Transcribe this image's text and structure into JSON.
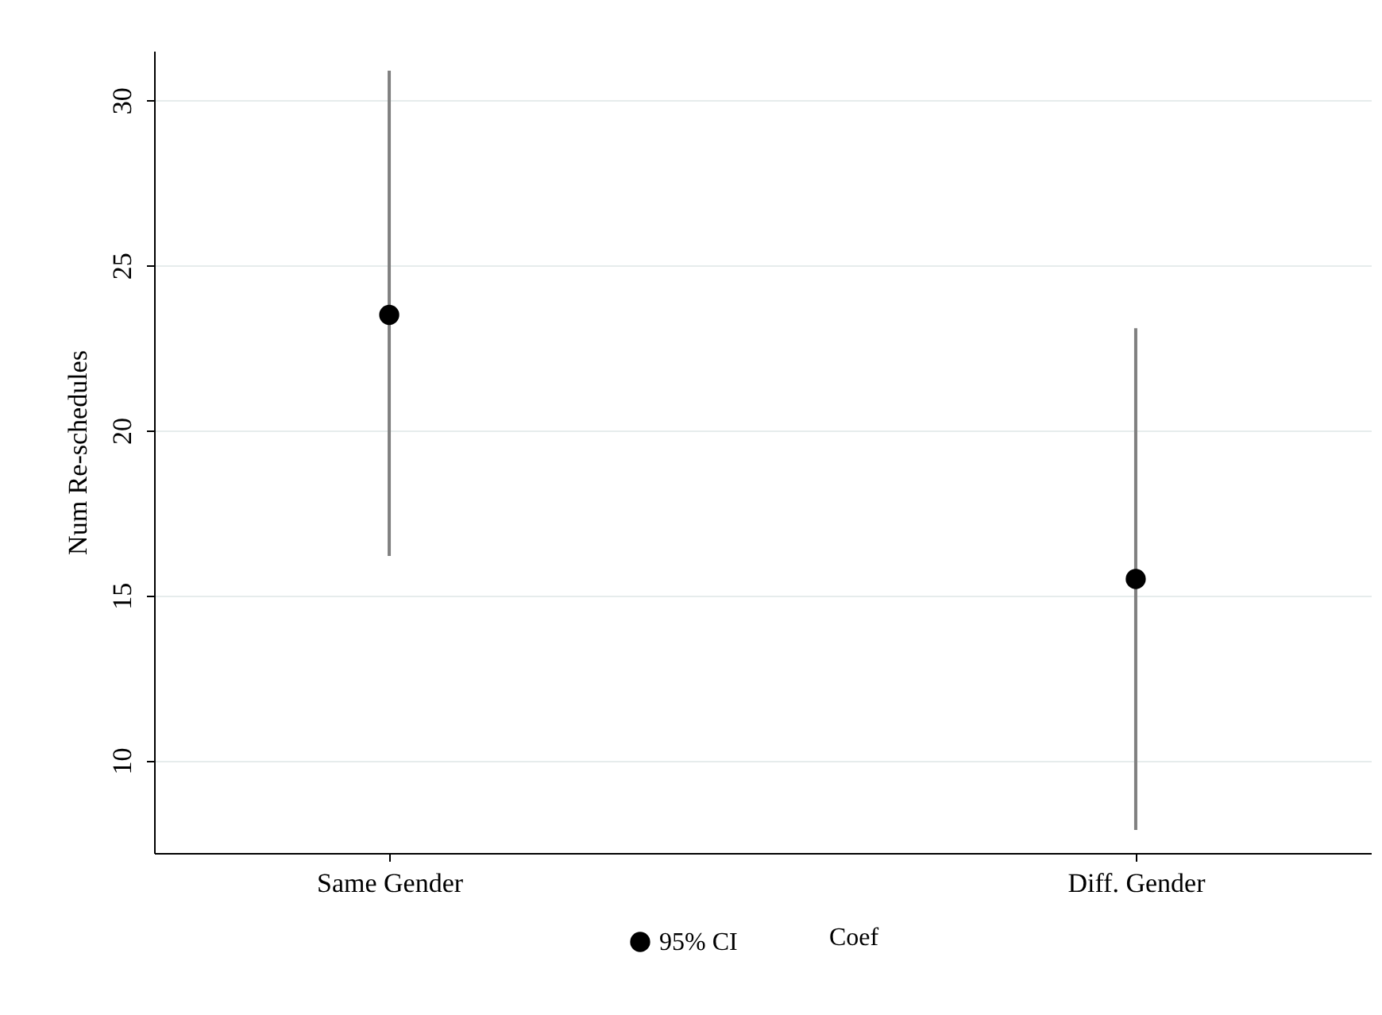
{
  "chart_data": {
    "type": "scatter",
    "ylabel": "Num Re-schedules",
    "categories": [
      "Same Gender",
      "Diff. Gender"
    ],
    "series": [
      {
        "name": "95% CI",
        "color": "#000000",
        "values": [
          23.5,
          15.5
        ],
        "errors": [
          [
            16.2,
            30.9
          ],
          [
            7.9,
            23.1
          ]
        ]
      }
    ],
    "annotations": [
      "Coef"
    ],
    "ylim": [
      7.2,
      31.5
    ],
    "yticks": [
      10,
      15,
      20,
      25,
      30
    ],
    "grid": "y",
    "legend": "bottom",
    "marker": "circle"
  }
}
